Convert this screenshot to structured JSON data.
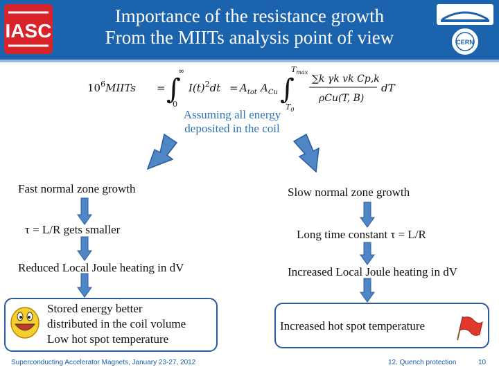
{
  "header": {
    "title_line1": "Importance of the resistance growth",
    "title_line2": "From the MIITs analysis point of view",
    "left_logo_text": "IASC",
    "right_logo_text": "CERN",
    "accent_color": "#1b63ad"
  },
  "formula": {
    "lhs": "10",
    "lhs_exp": "6",
    "miits": "MIITs",
    "integral_upper": "∞",
    "integral_lower": "0",
    "integrand": "I(t)",
    "dt": "dt",
    "a_tot": "A",
    "a_tot_sub": "tot",
    "a_cu": "A",
    "a_cu_sub": "Cu",
    "upper2": "T",
    "upper2_sub": "max",
    "lower2": "T",
    "lower2_sub": "0",
    "numerator": "∑k γk vk Cp,k",
    "denominator": "ρCu(T, B)",
    "dT": "dT"
  },
  "assumption": "Assuming all energy deposited in the coil",
  "left_branch": {
    "step1": "Fast normal zone growth",
    "step2": "τ = L/R gets smaller",
    "step3": "Reduced Local Joule heating in dV",
    "result_line1": "Stored energy better",
    "result_line2": "distributed in the coil volume",
    "result_line3": "Low hot spot temperature",
    "icon": "smiley-icon"
  },
  "right_branch": {
    "step1": "Slow normal zone growth",
    "step2": "Long time constant τ = L/R",
    "step3": "Increased Local Joule heating in dV",
    "result": "Increased hot spot temperature",
    "icon": "red-flag-icon"
  },
  "footer": {
    "left": "Superconducting Accelerator Magnets, January 23-27, 2012",
    "section": "12. Quench protection",
    "page": "10"
  }
}
